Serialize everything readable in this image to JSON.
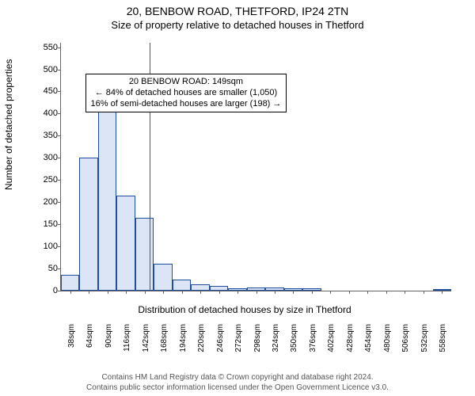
{
  "title": "20, BENBOW ROAD, THETFORD, IP24 2TN",
  "subtitle": "Size of property relative to detached houses in Thetford",
  "ylabel": "Number of detached properties",
  "xlabel": "Distribution of detached houses by size in Thetford",
  "footnote_line1": "Contains HM Land Registry data © Crown copyright and database right 2024.",
  "footnote_line2": "Contains public sector information licensed under the Open Government Licence v3.0.",
  "chart": {
    "type": "histogram",
    "background_color": "#ffffff",
    "bar_fill": "#dbe5f6",
    "bar_border": "#1f4e9c",
    "axis_color": "#666666",
    "text_color": "#000000",
    "x_min": 25,
    "x_max": 571,
    "bin_width": 26,
    "y_min": 0,
    "y_max": 560,
    "y_ticks": [
      0,
      50,
      100,
      150,
      200,
      250,
      300,
      350,
      400,
      450,
      500,
      550
    ],
    "x_tick_values": [
      38,
      64,
      90,
      116,
      142,
      168,
      194,
      220,
      246,
      272,
      298,
      324,
      350,
      376,
      402,
      428,
      454,
      480,
      506,
      532,
      558
    ],
    "x_tick_suffix": "sqm",
    "bins": [
      {
        "start": 25,
        "count": 35
      },
      {
        "start": 51,
        "count": 300
      },
      {
        "start": 77,
        "count": 440
      },
      {
        "start": 103,
        "count": 215
      },
      {
        "start": 129,
        "count": 165
      },
      {
        "start": 155,
        "count": 60
      },
      {
        "start": 181,
        "count": 25
      },
      {
        "start": 207,
        "count": 15
      },
      {
        "start": 233,
        "count": 10
      },
      {
        "start": 259,
        "count": 5
      },
      {
        "start": 285,
        "count": 8
      },
      {
        "start": 311,
        "count": 7
      },
      {
        "start": 337,
        "count": 6
      },
      {
        "start": 363,
        "count": 5
      },
      {
        "start": 389,
        "count": 0
      },
      {
        "start": 415,
        "count": 0
      },
      {
        "start": 441,
        "count": 0
      },
      {
        "start": 467,
        "count": 0
      },
      {
        "start": 493,
        "count": 0
      },
      {
        "start": 519,
        "count": 0
      },
      {
        "start": 545,
        "count": 3
      }
    ],
    "reference_line": {
      "x": 149,
      "color": "#c62828",
      "width": 1
    },
    "annotation": {
      "line1": "20 BENBOW ROAD: 149sqm",
      "line2": "← 84% of detached houses are smaller (1,050)",
      "line3": "16% of semi-detached houses are larger (198) →",
      "x_center": 200,
      "y_top": 490,
      "border_color": "#000000",
      "bg_color": "#ffffff",
      "fontsize": 11
    }
  }
}
